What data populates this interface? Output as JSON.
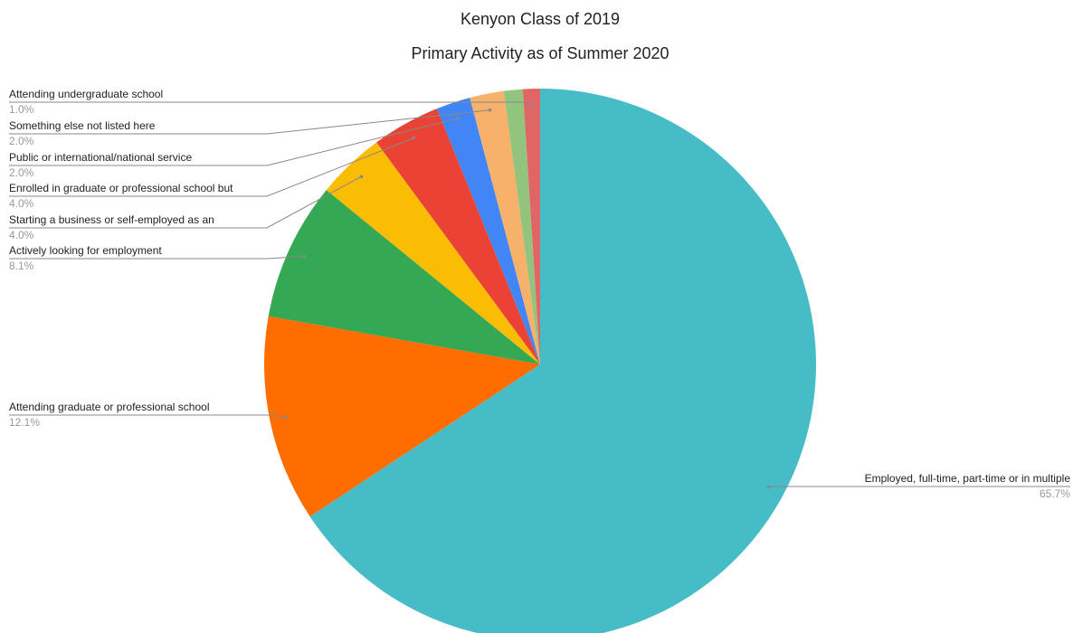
{
  "chart_data": {
    "type": "pie",
    "title": "Kenyon Class of 2019",
    "subtitle": "Primary Activity as of Summer 2020",
    "categories": [
      "Employed, full-time, part-time or in multiple",
      "Attending graduate or professional school",
      "Actively looking for employment",
      "Starting a business or self-employed as an",
      "Enrolled in graduate or professional school but",
      "Public or international/national service",
      "Something else not listed here",
      null,
      "Attending undergraduate school"
    ],
    "values": [
      65.7,
      12.1,
      8.1,
      4.0,
      4.0,
      2.0,
      2.0,
      1.1,
      1.0
    ],
    "value_labels": [
      "65.7%",
      "12.1%",
      "8.1%",
      "4.0%",
      "4.0%",
      "2.0%",
      "2.0%",
      null,
      "1.0%"
    ],
    "colors": [
      "#46bdc6",
      "#ff6d01",
      "#34a853",
      "#fbbc04",
      "#ea4335",
      "#4285f4",
      "#f6b26b",
      "#93c47d",
      "#e06666"
    ]
  }
}
